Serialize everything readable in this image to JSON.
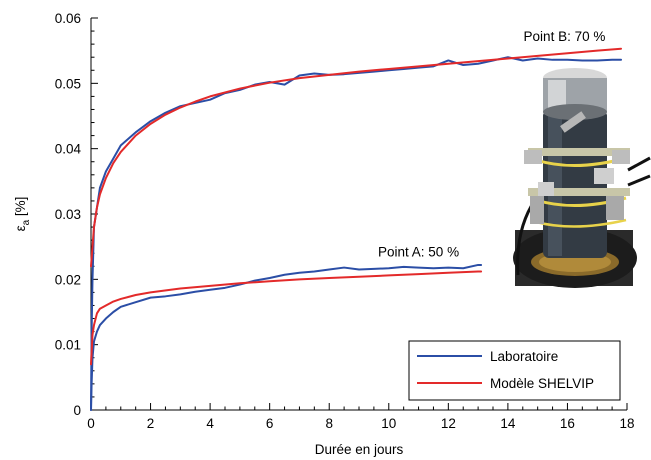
{
  "chart_data": {
    "type": "line",
    "xlabel": "Durée en jours",
    "ylabel": "ε",
    "ylabel_sub": "a",
    "ylabel_unit": " [%]",
    "xlim": [
      0,
      18
    ],
    "ylim": [
      0,
      0.06
    ],
    "x_ticks": [
      0,
      2,
      4,
      6,
      8,
      10,
      12,
      14,
      16,
      18
    ],
    "x_tick_labels": [
      "0",
      "2",
      "4",
      "6",
      "8",
      "10",
      "12",
      "14",
      "16",
      "18"
    ],
    "y_ticks": [
      0,
      0.01,
      0.02,
      0.03,
      0.04,
      0.05,
      0.06
    ],
    "y_tick_labels": [
      "0",
      "0.01",
      "0.02",
      "0.03",
      "0.04",
      "0.05",
      "0.06"
    ],
    "grid": false,
    "legend_position": "bottom-right",
    "annotations": [
      {
        "text": "Point B: 70 %",
        "x": 15.9,
        "y": 0.0565
      },
      {
        "text": "Point A: 50 %",
        "x": 11.0,
        "y": 0.0235
      }
    ],
    "series": [
      {
        "name": "Laboratoire",
        "color": "#2b4ea6",
        "group": "B",
        "x": [
          0,
          0.02,
          0.05,
          0.1,
          0.2,
          0.3,
          0.5,
          0.75,
          1,
          1.5,
          2,
          2.5,
          3,
          3.5,
          4,
          4.5,
          5,
          5.5,
          6,
          6.5,
          7,
          7.5,
          8,
          8.5,
          9,
          9.5,
          10,
          10.5,
          11,
          11.5,
          12,
          12.5,
          13,
          13.5,
          14,
          14.5,
          15,
          15.5,
          16,
          16.5,
          17,
          17.5,
          17.8
        ],
        "y": [
          0,
          0.012,
          0.02,
          0.028,
          0.031,
          0.034,
          0.0365,
          0.0385,
          0.0405,
          0.0425,
          0.0442,
          0.0455,
          0.0465,
          0.047,
          0.0475,
          0.0485,
          0.049,
          0.0498,
          0.0502,
          0.0498,
          0.0512,
          0.0515,
          0.0513,
          0.0514,
          0.0516,
          0.0518,
          0.052,
          0.0522,
          0.0524,
          0.0526,
          0.0535,
          0.0528,
          0.053,
          0.0535,
          0.054,
          0.0535,
          0.0538,
          0.0536,
          0.0536,
          0.0535,
          0.0535,
          0.0536,
          0.0536
        ]
      },
      {
        "name": "Modèle SHELVIP",
        "color": "#e32a2a",
        "group": "B",
        "x": [
          0,
          0.05,
          0.1,
          0.2,
          0.3,
          0.5,
          0.75,
          1,
          1.5,
          2,
          2.5,
          3,
          3.5,
          4,
          5,
          6,
          7,
          8,
          9,
          10,
          11,
          12,
          13,
          14,
          15,
          16,
          17,
          17.8
        ],
        "y": [
          0.022,
          0.025,
          0.028,
          0.031,
          0.033,
          0.0355,
          0.0378,
          0.0395,
          0.042,
          0.0438,
          0.0452,
          0.0463,
          0.0472,
          0.048,
          0.0492,
          0.0501,
          0.0508,
          0.0513,
          0.0518,
          0.0522,
          0.0526,
          0.053,
          0.0534,
          0.0538,
          0.0542,
          0.0546,
          0.055,
          0.0553
        ]
      },
      {
        "name": "Laboratoire",
        "color": "#2b4ea6",
        "group": "A",
        "x": [
          0,
          0.02,
          0.05,
          0.1,
          0.2,
          0.3,
          0.5,
          0.75,
          1,
          1.5,
          2,
          2.5,
          3,
          3.5,
          4,
          4.5,
          5,
          5.5,
          6,
          6.5,
          7,
          7.5,
          8,
          8.5,
          9,
          9.5,
          10,
          10.5,
          11,
          11.5,
          12,
          12.5,
          13,
          13.1
        ],
        "y": [
          0,
          0.004,
          0.008,
          0.0105,
          0.012,
          0.013,
          0.014,
          0.015,
          0.0158,
          0.0165,
          0.0172,
          0.0174,
          0.0177,
          0.0181,
          0.0184,
          0.0187,
          0.0192,
          0.0198,
          0.0202,
          0.0207,
          0.021,
          0.0212,
          0.0215,
          0.0218,
          0.0215,
          0.0216,
          0.0217,
          0.0219,
          0.0218,
          0.0217,
          0.0218,
          0.0217,
          0.0222,
          0.0222
        ]
      },
      {
        "name": "Modèle SHELVIP",
        "color": "#e32a2a",
        "group": "A",
        "x": [
          0,
          0.05,
          0.1,
          0.2,
          0.3,
          0.5,
          0.75,
          1,
          1.5,
          2,
          3,
          4,
          5,
          6,
          7,
          8,
          9,
          10,
          11,
          12,
          13,
          13.1
        ],
        "y": [
          0.007,
          0.0115,
          0.013,
          0.0148,
          0.0155,
          0.016,
          0.0166,
          0.017,
          0.0176,
          0.018,
          0.0186,
          0.019,
          0.0194,
          0.0197,
          0.02,
          0.0202,
          0.0204,
          0.0206,
          0.0208,
          0.021,
          0.0212,
          0.0212
        ]
      }
    ]
  },
  "legend": {
    "items": [
      {
        "label": "Laboratoire",
        "color": "#2b4ea6"
      },
      {
        "label": "Modèle SHELVIP",
        "color": "#e32a2a"
      }
    ]
  },
  "photo": {
    "description_icon": "triaxial-specimen-photo"
  }
}
